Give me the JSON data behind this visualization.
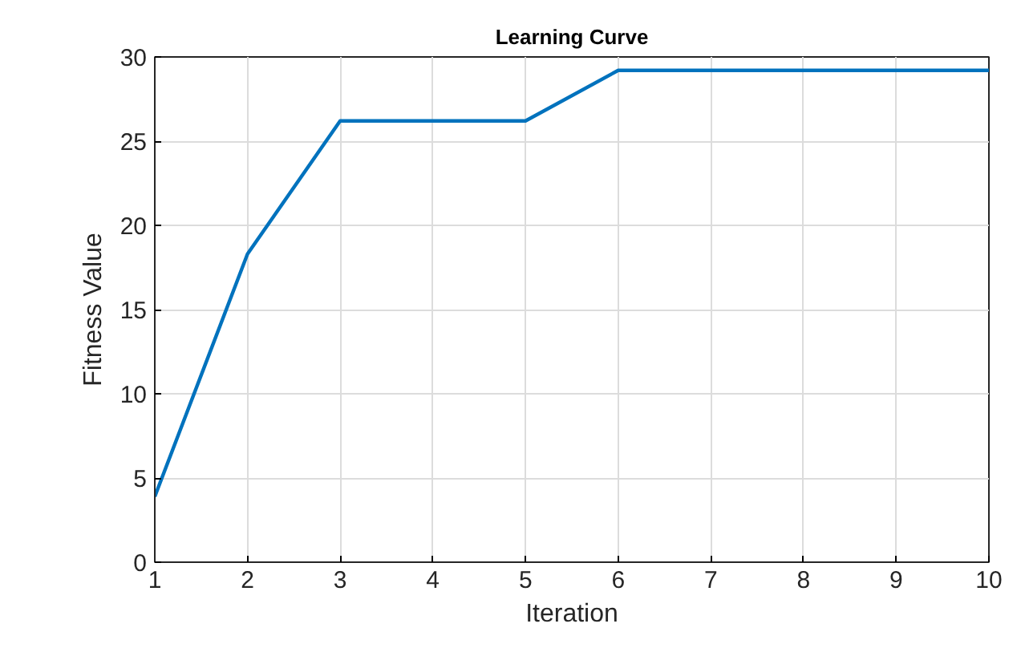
{
  "chart_data": {
    "type": "line",
    "title": "Learning Curve",
    "xlabel": "Iteration",
    "ylabel": "Fitness Value",
    "x": [
      1,
      2,
      3,
      4,
      5,
      6,
      7,
      8,
      9,
      10
    ],
    "series": [
      {
        "color": "#0072bd",
        "values": [
          3.9,
          18.3,
          26.2,
          26.2,
          26.2,
          29.2,
          29.2,
          29.2,
          29.2,
          29.2
        ]
      }
    ],
    "xlim": [
      1,
      10
    ],
    "ylim": [
      0,
      30
    ],
    "xticks": [
      1,
      2,
      3,
      4,
      5,
      6,
      7,
      8,
      9,
      10
    ],
    "yticks": [
      0,
      5,
      10,
      15,
      20,
      25,
      30
    ],
    "grid": true,
    "marker": "none",
    "line_style": "solid"
  }
}
